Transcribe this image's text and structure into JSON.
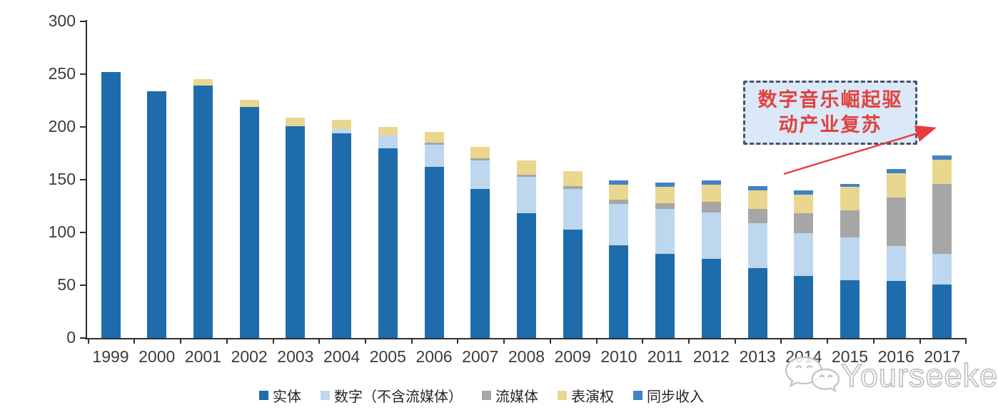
{
  "chart_data": {
    "type": "bar",
    "stacked": true,
    "title": "",
    "xlabel": "",
    "ylabel": "",
    "categories": [
      "1999",
      "2000",
      "2001",
      "2002",
      "2003",
      "2004",
      "2005",
      "2006",
      "2007",
      "2008",
      "2009",
      "2010",
      "2011",
      "2012",
      "2013",
      "2014",
      "2015",
      "2016",
      "2017"
    ],
    "series": [
      {
        "name": "实体",
        "color": "#1F6CAC",
        "values": [
          252,
          234,
          239,
          219,
          201,
          194,
          180,
          162,
          141,
          118,
          103,
          88,
          80,
          75,
          66,
          59,
          55,
          54,
          51
        ]
      },
      {
        "name": "数字（不含流媒体）",
        "color": "#BDD7EE",
        "values": [
          0,
          0,
          0,
          0,
          0,
          4,
          12,
          21,
          27,
          35,
          38,
          39,
          42,
          44,
          43,
          40,
          40,
          33,
          29
        ]
      },
      {
        "name": "流媒体",
        "color": "#A6A6A6",
        "values": [
          0,
          0,
          0,
          0,
          0,
          0,
          0,
          2,
          2,
          2,
          3,
          4,
          6,
          10,
          13,
          19,
          26,
          46,
          66
        ]
      },
      {
        "name": "表演权",
        "color": "#EAD78F",
        "values": [
          0,
          0,
          6,
          7,
          8,
          9,
          8,
          10,
          11,
          13,
          14,
          14,
          15,
          16,
          18,
          18,
          22,
          23,
          23
        ]
      },
      {
        "name": "同步收入",
        "color": "#4183C4",
        "values": [
          0,
          0,
          0,
          0,
          0,
          0,
          0,
          0,
          0,
          0,
          0,
          4,
          4,
          4,
          4,
          4,
          3,
          4,
          4
        ]
      }
    ],
    "ylim": [
      0,
      300
    ],
    "yticks": [
      0,
      50,
      100,
      150,
      200,
      250,
      300
    ],
    "grid": false,
    "legend_position": "bottom"
  },
  "annotation": {
    "line1": "数字音乐崛起驱",
    "line2": "动产业复苏"
  },
  "watermark": {
    "label": "Yourseeker",
    "icon": "wechat-icon"
  },
  "colors": {
    "axis": "#2f2f2f",
    "annotation_text": "#e0413f",
    "annotation_border": "#46536b",
    "annotation_bg": "#dbe8f7",
    "arrow": "#ea3b3d",
    "watermark": "#c0c0c0"
  }
}
